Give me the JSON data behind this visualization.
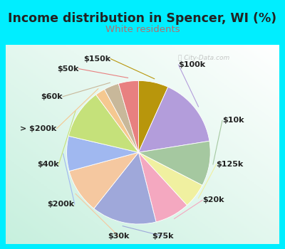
{
  "title": "Income distribution in Spencer, WI (%)",
  "subtitle": "White residents",
  "title_fontsize": 12.5,
  "subtitle_fontsize": 9.5,
  "title_color": "#222222",
  "subtitle_color": "#b07070",
  "bg_cyan": "#00eeff",
  "watermark": "Ⓢ City-Data.com",
  "labels": [
    "$150k",
    "$100k",
    "$10k",
    "$125k",
    "$20k",
    "$75k",
    "$30k",
    "$200k",
    "$40k",
    "> $200k",
    "$60k",
    "$50k"
  ],
  "values": [
    6,
    14,
    9,
    5,
    7,
    13,
    9,
    7,
    10,
    2,
    3,
    4
  ],
  "colors": [
    "#b8960c",
    "#b39ddb",
    "#a5c8a0",
    "#f0f0a0",
    "#f4a8c0",
    "#9fa8da",
    "#f5c8a0",
    "#a0b8f0",
    "#c5e17a",
    "#f5c890",
    "#c8b89a",
    "#e88080"
  ],
  "label_fontsize": 8,
  "startangle": 90
}
